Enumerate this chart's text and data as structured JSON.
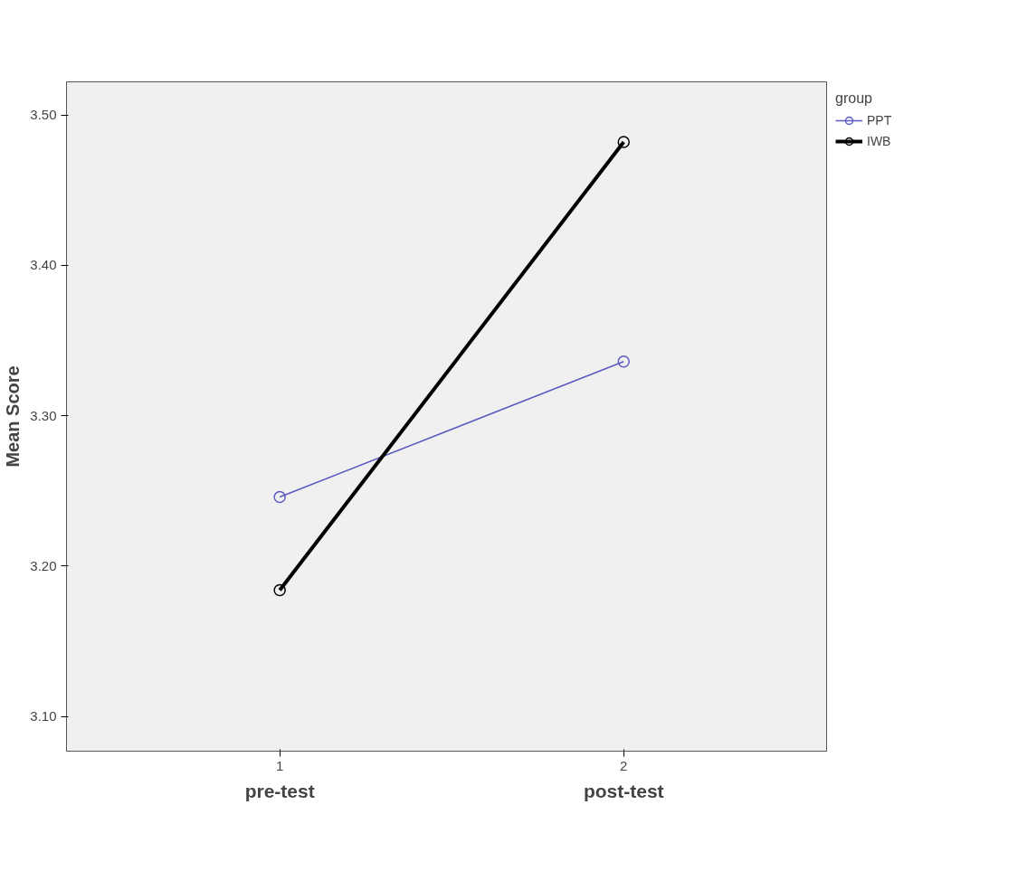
{
  "chart_data": {
    "type": "line",
    "ylabel": "Mean Score",
    "legend_title": "group",
    "categories": [
      "1",
      "2"
    ],
    "annotations": [
      "pre-test",
      "post-test"
    ],
    "series": [
      {
        "name": "PPT",
        "color": "#5a5ac0",
        "values": [
          3.246,
          3.336
        ]
      },
      {
        "name": "IWB",
        "color": "#000000",
        "values": [
          3.184,
          3.482
        ]
      }
    ],
    "ylim": [
      3.077,
      3.522
    ],
    "yticks": [
      {
        "value": 3.1,
        "label": "3.10"
      },
      {
        "value": 3.2,
        "label": "3.20"
      },
      {
        "value": 3.3,
        "label": "3.30"
      },
      {
        "value": 3.4,
        "label": "3.40"
      },
      {
        "value": 3.5,
        "label": "3.50"
      }
    ],
    "grid": false,
    "legend": "top right",
    "marker": "circle",
    "line_style": "solid"
  }
}
